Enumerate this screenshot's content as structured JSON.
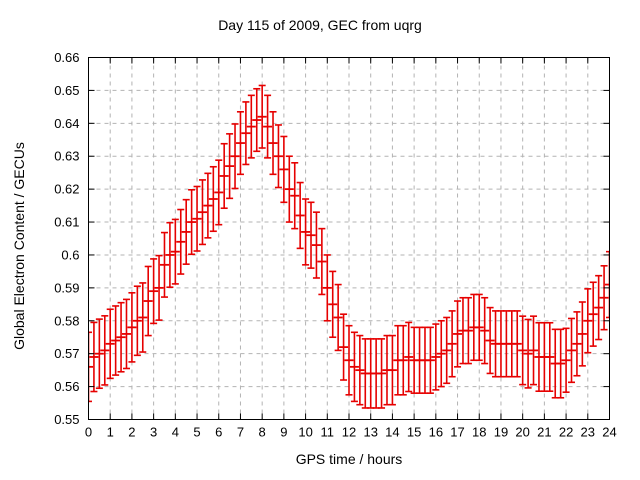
{
  "title": "Day 115 of 2009, GEC from uqrg",
  "xlabel": "GPS time / hours",
  "ylabel": "Global Electron Content / GECUs",
  "chart_data": {
    "type": "scatter",
    "style": "yerrorbars",
    "title": "Day 115 of 2009, GEC from uqrg",
    "xlabel": "GPS time / hours",
    "ylabel": "Global Electron Content / GECUs",
    "xlim": [
      0,
      24
    ],
    "ylim": [
      0.55,
      0.66
    ],
    "grid": true,
    "xticks": [
      0,
      1,
      2,
      3,
      4,
      5,
      6,
      7,
      8,
      9,
      10,
      11,
      12,
      13,
      14,
      15,
      16,
      17,
      18,
      19,
      20,
      21,
      22,
      23,
      24
    ],
    "xtick_labels": [
      "0",
      "1",
      "2",
      "3",
      "4",
      "5",
      "6",
      "7",
      "8",
      "9",
      "10",
      "11",
      "12",
      "13",
      "14",
      "15",
      "16",
      "17",
      "18",
      "19",
      "20",
      "21",
      "22",
      "23",
      "24"
    ],
    "yticks": [
      0.55,
      0.56,
      0.57,
      0.58,
      0.59,
      0.6,
      0.61,
      0.62,
      0.63,
      0.64,
      0.65,
      0.66
    ],
    "ytick_labels": [
      "0.55",
      "0.56",
      "0.57",
      "0.58",
      "0.59",
      "0.6",
      "0.61",
      "0.62",
      "0.63",
      "0.64",
      "0.65",
      "0.66"
    ],
    "colors": {
      "series": "#e60000",
      "grid": "#b3b3b3",
      "axis": "#000000"
    },
    "x": [
      0,
      0.25,
      0.5,
      0.75,
      1,
      1.25,
      1.5,
      1.75,
      2,
      2.25,
      2.5,
      2.75,
      3,
      3.25,
      3.5,
      3.75,
      4,
      4.25,
      4.5,
      4.75,
      5,
      5.25,
      5.5,
      5.75,
      6,
      6.25,
      6.5,
      6.75,
      7,
      7.25,
      7.5,
      7.75,
      8,
      8.25,
      8.5,
      8.75,
      9,
      9.25,
      9.5,
      9.75,
      10,
      10.25,
      10.5,
      10.75,
      11,
      11.25,
      11.5,
      11.75,
      12,
      12.25,
      12.5,
      12.75,
      13,
      13.25,
      13.5,
      13.75,
      14,
      14.25,
      14.5,
      14.75,
      15,
      15.25,
      15.5,
      15.75,
      16,
      16.25,
      16.5,
      16.75,
      17,
      17.25,
      17.5,
      17.75,
      18,
      18.25,
      18.5,
      18.75,
      19,
      19.25,
      19.5,
      19.75,
      20,
      20.25,
      20.5,
      20.75,
      21,
      21.25,
      21.5,
      21.75,
      22,
      22.25,
      22.5,
      22.75,
      23,
      23.25,
      23.5,
      23.75,
      24
    ],
    "y": [
      0.566,
      0.569,
      0.57,
      0.571,
      0.573,
      0.574,
      0.575,
      0.576,
      0.578,
      0.58,
      0.581,
      0.586,
      0.589,
      0.59,
      0.597,
      0.6,
      0.601,
      0.604,
      0.607,
      0.61,
      0.611,
      0.613,
      0.615,
      0.617,
      0.619,
      0.624,
      0.627,
      0.63,
      0.634,
      0.637,
      0.639,
      0.641,
      0.642,
      0.639,
      0.634,
      0.63,
      0.626,
      0.62,
      0.618,
      0.612,
      0.607,
      0.606,
      0.603,
      0.598,
      0.59,
      0.585,
      0.581,
      0.572,
      0.568,
      0.566,
      0.565,
      0.564,
      0.564,
      0.564,
      0.564,
      0.565,
      0.565,
      0.568,
      0.568,
      0.569,
      0.568,
      0.568,
      0.568,
      0.568,
      0.569,
      0.57,
      0.571,
      0.573,
      0.576,
      0.577,
      0.577,
      0.578,
      0.578,
      0.577,
      0.574,
      0.573,
      0.573,
      0.573,
      0.573,
      0.573,
      0.571,
      0.57,
      0.571,
      0.569,
      0.569,
      0.569,
      0.567,
      0.567,
      0.568,
      0.571,
      0.573,
      0.576,
      0.58,
      0.582,
      0.584,
      0.587,
      0.591
    ],
    "yerr": [
      0.0105,
      0.0105,
      0.0105,
      0.0105,
      0.0105,
      0.0105,
      0.0105,
      0.0105,
      0.0105,
      0.0105,
      0.0105,
      0.0105,
      0.0098,
      0.0098,
      0.0098,
      0.0098,
      0.0098,
      0.0098,
      0.0098,
      0.0098,
      0.0098,
      0.0098,
      0.0098,
      0.0098,
      0.0098,
      0.0098,
      0.0098,
      0.0098,
      0.0095,
      0.0095,
      0.0095,
      0.0095,
      0.0095,
      0.0095,
      0.0095,
      0.0095,
      0.01,
      0.01,
      0.01,
      0.01,
      0.01,
      0.01,
      0.01,
      0.01,
      0.01,
      0.01,
      0.01,
      0.01,
      0.0105,
      0.0105,
      0.0105,
      0.0105,
      0.0105,
      0.0105,
      0.0105,
      0.0105,
      0.0105,
      0.0105,
      0.0105,
      0.0105,
      0.01,
      0.01,
      0.01,
      0.01,
      0.01,
      0.01,
      0.01,
      0.01,
      0.01,
      0.01,
      0.01,
      0.01,
      0.01,
      0.01,
      0.01,
      0.01,
      0.01,
      0.01,
      0.01,
      0.01,
      0.0104,
      0.0104,
      0.0104,
      0.0104,
      0.0104,
      0.0104,
      0.0104,
      0.0104,
      0.0097,
      0.0097,
      0.0097,
      0.0097,
      0.0097,
      0.0097,
      0.0097,
      0.0097,
      0.01
    ]
  }
}
